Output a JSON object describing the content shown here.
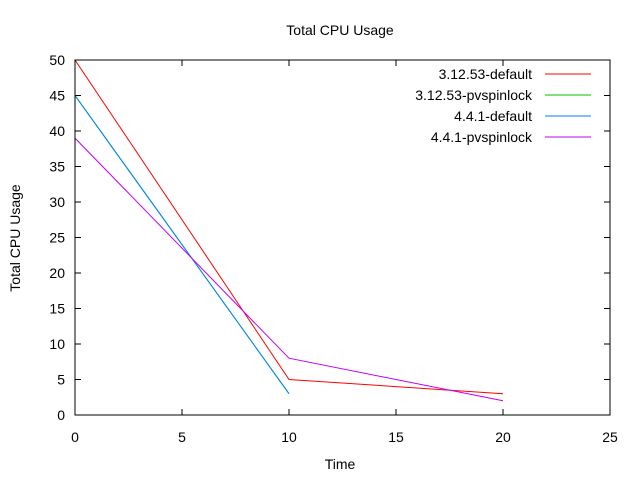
{
  "chart_data": {
    "type": "line",
    "title": "Total CPU Usage",
    "xlabel": "Time",
    "ylabel": "Total CPU Usage",
    "xlim": [
      0,
      25
    ],
    "ylim": [
      0,
      50
    ],
    "xticks": [
      0,
      5,
      10,
      15,
      20,
      25
    ],
    "yticks": [
      0,
      5,
      10,
      15,
      20,
      25,
      30,
      35,
      40,
      45,
      50
    ],
    "grid": false,
    "legend_position": "top-right",
    "series": [
      {
        "name": "3.12.53-default",
        "color": "#ff0000",
        "x": [
          0,
          10,
          20
        ],
        "y": [
          50,
          5,
          3
        ]
      },
      {
        "name": "3.12.53-pvspinlock",
        "color": "#00c000",
        "x": [
          0,
          10
        ],
        "y": [
          45,
          3
        ]
      },
      {
        "name": "4.4.1-default",
        "color": "#0080ff",
        "x": [
          0,
          10
        ],
        "y": [
          45,
          3
        ]
      },
      {
        "name": "4.4.1-pvspinlock",
        "color": "#c000ff",
        "x": [
          0,
          10,
          20
        ],
        "y": [
          39,
          8,
          2
        ]
      }
    ]
  }
}
